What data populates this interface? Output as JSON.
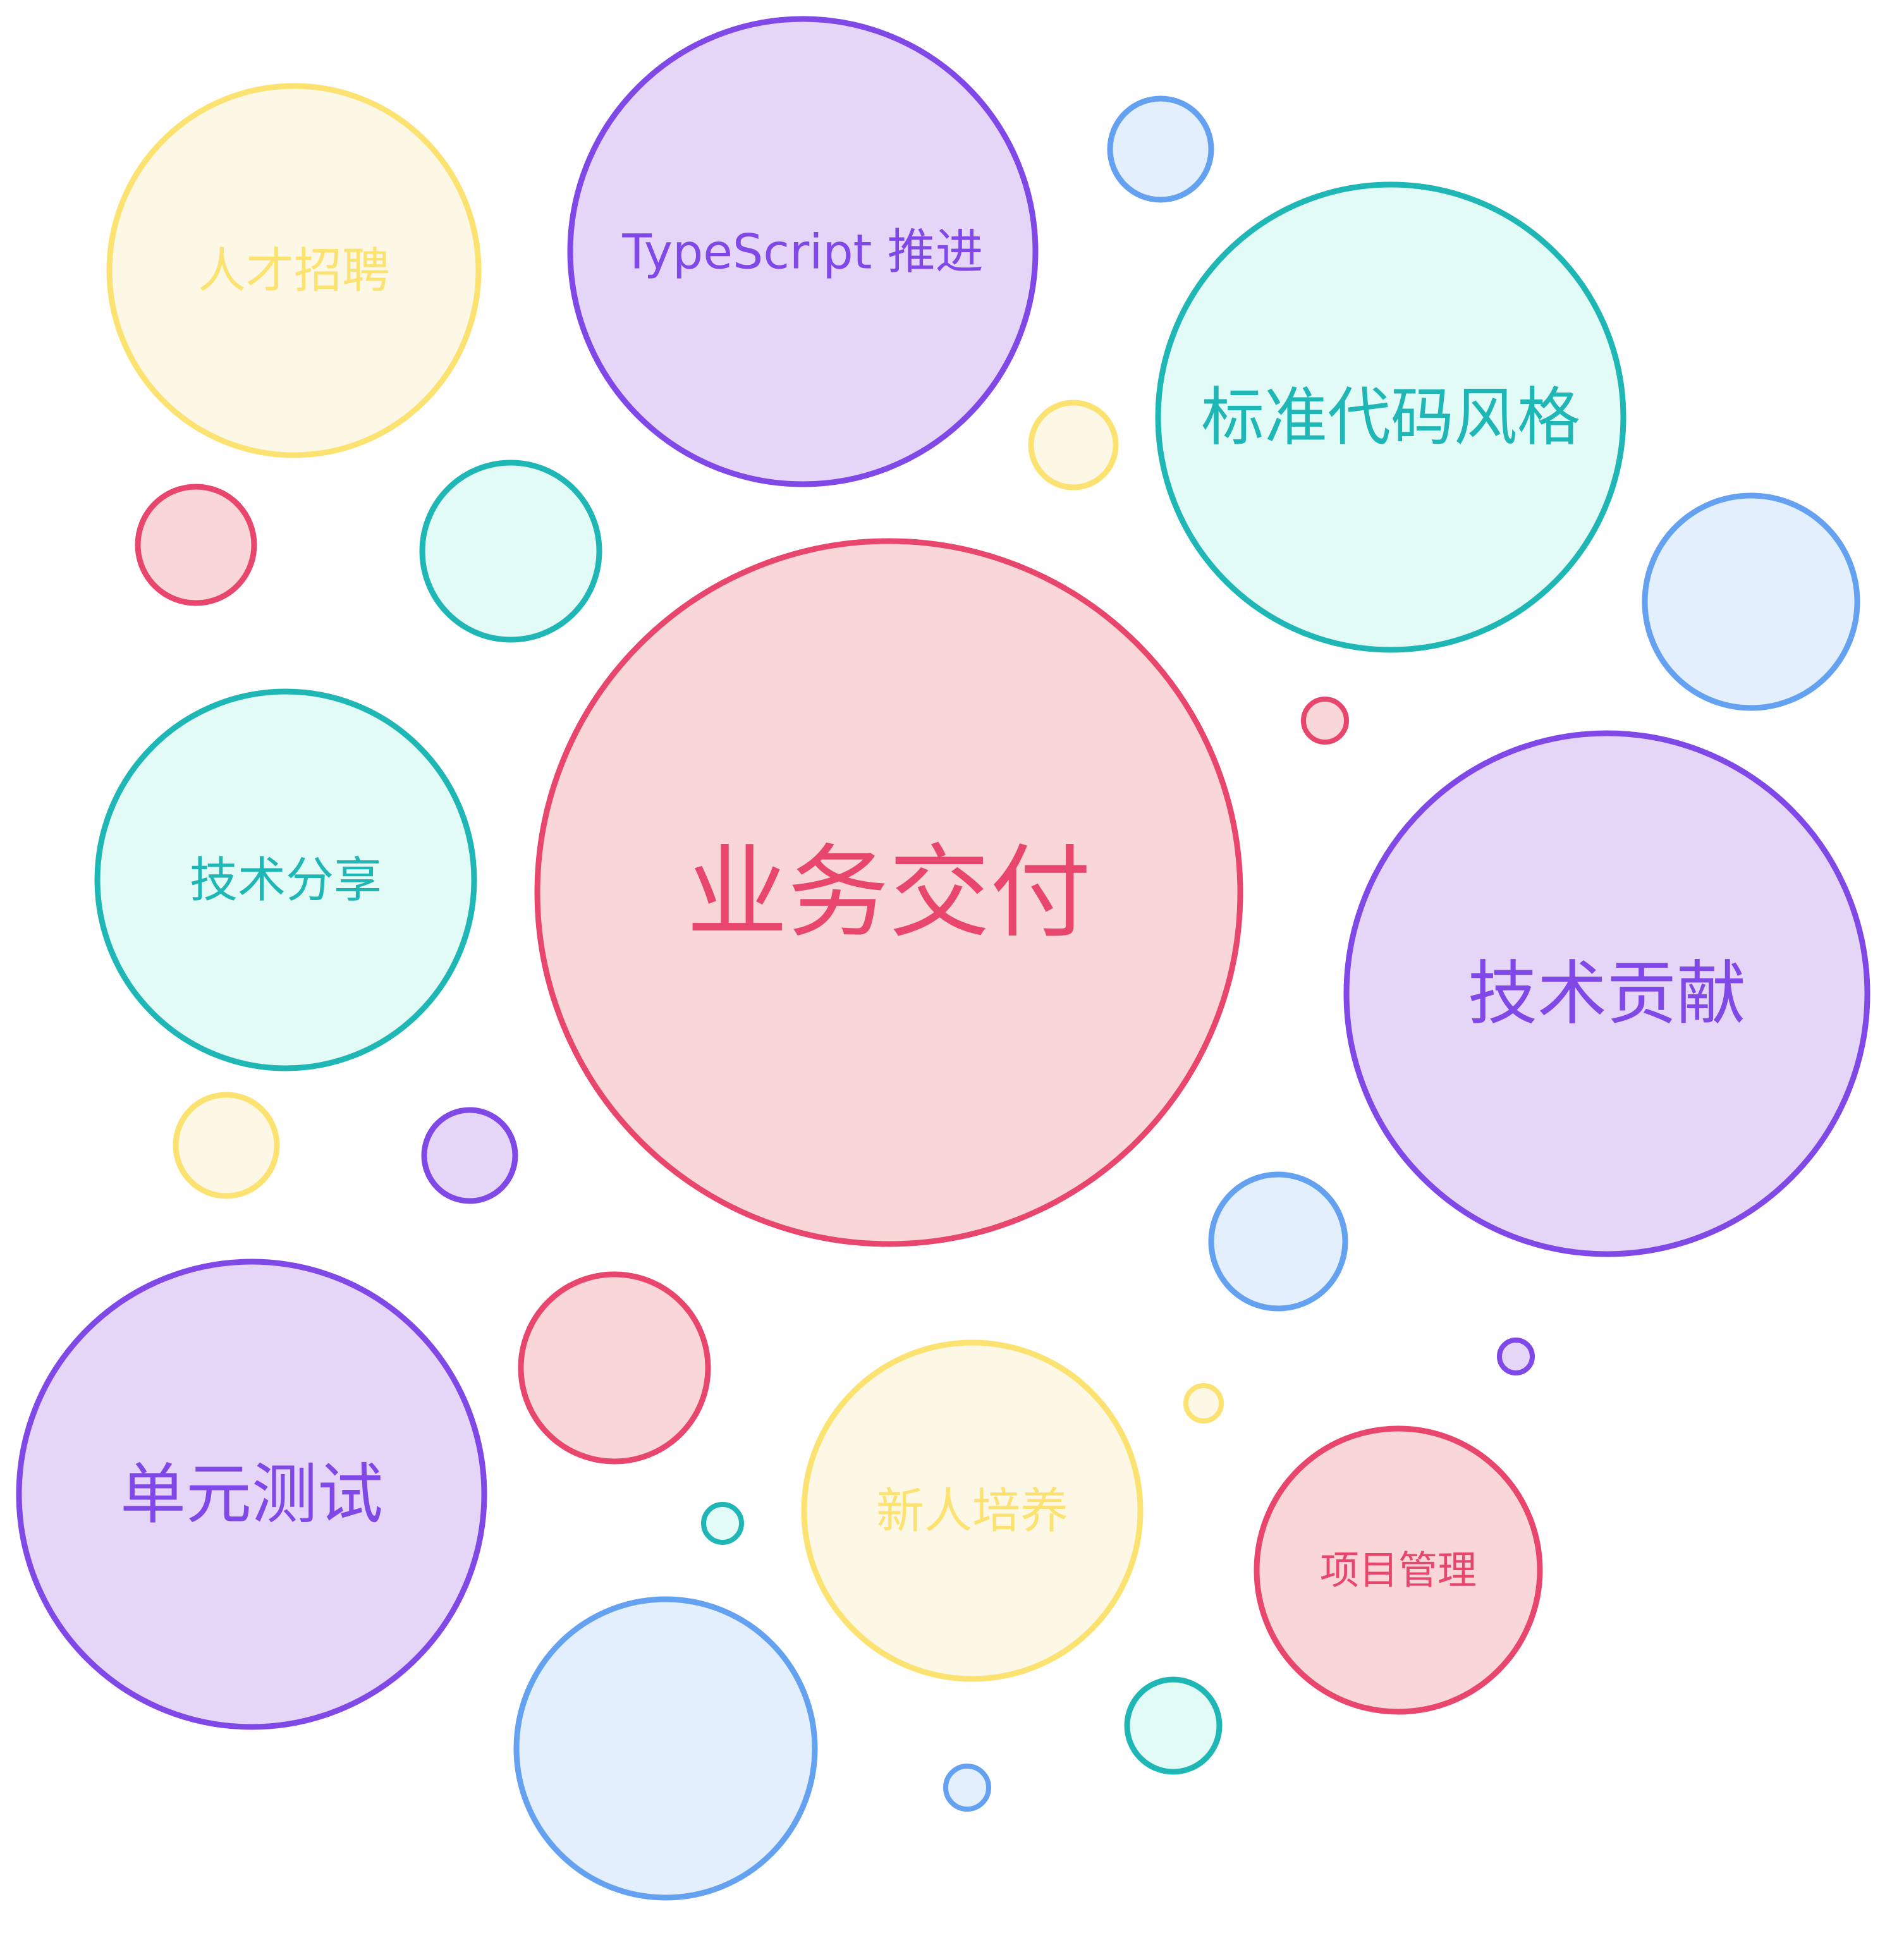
{
  "palette": {
    "red": {
      "stroke": "#e8466c",
      "fill": "#f9d6d8"
    },
    "purple": {
      "stroke": "#8048e6",
      "fill": "#e5d6f8"
    },
    "teal": {
      "stroke": "#1fb6b6",
      "fill": "#e3fbf6"
    },
    "yellow": {
      "stroke": "#fce271",
      "fill": "#fdf8e6"
    },
    "blue": {
      "stroke": "#64a2f1",
      "fill": "#e3effc"
    }
  },
  "labels": {
    "yewu_jiaofu": "业务交付",
    "jishu_gongxian": "技术贡献",
    "danyuan_ceshi": "单元测试",
    "biaozhun_daima": "标准代码风格",
    "typescript": "TypeScript 推进",
    "rencai_zhaopin": "人才招聘",
    "jishu_fenxiang": "技术分享",
    "xinren_peiyang": "新人培养",
    "xiangmu_guanli": "项目管理"
  },
  "bubbles": [
    {
      "color": "red",
      "label": "yewu_jiaofu"
    },
    {
      "color": "purple",
      "label": "jishu_gongxian"
    },
    {
      "color": "purple",
      "label": "danyuan_ceshi"
    },
    {
      "color": "teal",
      "label": "biaozhun_daima"
    },
    {
      "color": "purple",
      "label": "typescript"
    },
    {
      "color": "yellow",
      "label": "rencai_zhaopin"
    },
    {
      "color": "teal",
      "label": "jishu_fenxiang"
    },
    {
      "color": "yellow",
      "label": "xinren_peiyang"
    },
    {
      "color": "red",
      "label": "xiangmu_guanli"
    },
    {
      "color": "blue"
    },
    {
      "color": "blue"
    },
    {
      "color": "teal"
    },
    {
      "color": "red"
    },
    {
      "color": "yellow"
    },
    {
      "color": "red"
    },
    {
      "color": "blue"
    },
    {
      "color": "blue"
    },
    {
      "color": "red"
    },
    {
      "color": "yellow"
    },
    {
      "color": "purple"
    },
    {
      "color": "purple"
    },
    {
      "color": "yellow"
    },
    {
      "color": "teal"
    },
    {
      "color": "teal"
    },
    {
      "color": "blue"
    }
  ]
}
